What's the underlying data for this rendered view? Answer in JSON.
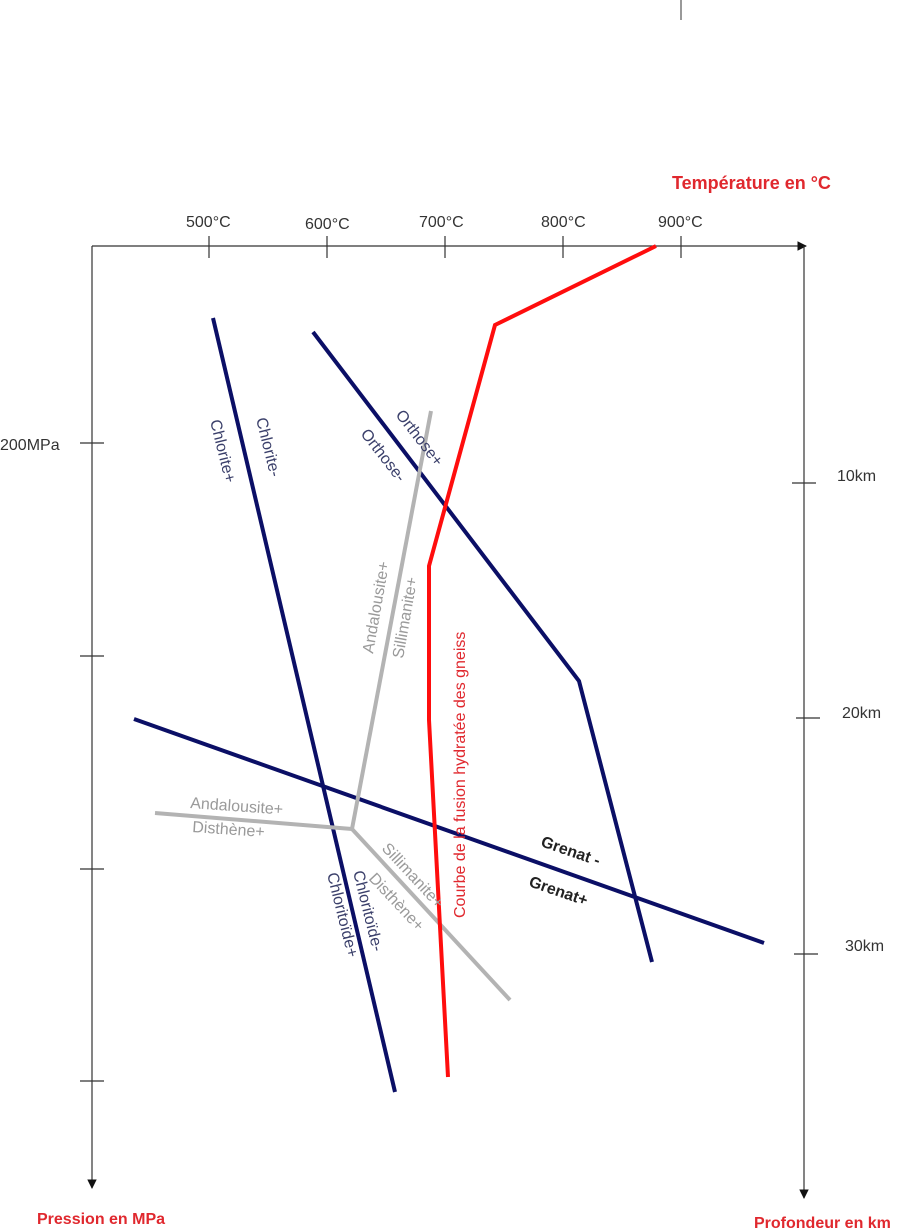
{
  "axes": {
    "temperature_title": "Température en °C",
    "pressure_title": "Pression en MPa",
    "depth_title": "Profondeur en km",
    "temperature_ticks": [
      "500°C",
      "600°C",
      "700°C",
      "800°C",
      "900°C"
    ],
    "pressure_ticks": [
      "200MPa"
    ],
    "depth_ticks": [
      "10km",
      "20km",
      "30km"
    ]
  },
  "reactions": {
    "chlorite_minus": "Chlorite-",
    "chlorite_plus": "Chlorite+",
    "orthose_plus": "Orthose+",
    "orthose_minus": "Orthose-",
    "andalousite_plus_1": "Andalousite+",
    "sillimanite_plus_1": "Sillimanite+",
    "andalousite_plus_2": "Andalousite+",
    "disthene_plus_1": "Disthène+",
    "sillimanite_plus_2": "Sillimanite+",
    "disthene_plus_2": "Disthène+",
    "chloritoide_minus": "Chloritoïde-",
    "chloritoide_plus": "Chloritoïde+",
    "grenat_minus": "Grenat -",
    "grenat_plus": "Grenat+",
    "fusion_curve": "Courbe de la fusion hydratée des gneiss"
  },
  "colors": {
    "navy": "#0b0f66",
    "gray": "#b3b3b3",
    "red": "#ff0d0d",
    "axis": "#333333",
    "title_red": "#e0282e"
  }
}
